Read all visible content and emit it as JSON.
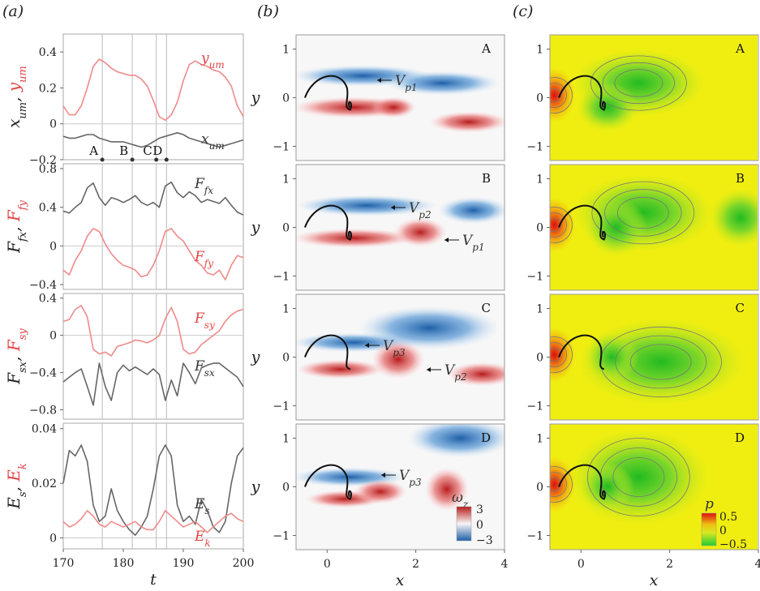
{
  "panels": {
    "a": "(a)",
    "b": "(b)",
    "c": "(c)"
  },
  "colors": {
    "red": "#f08a8a",
    "black": "#666666",
    "vort_pos": "#b71c1c",
    "vort_neg": "#1e5fa8",
    "pressure_low": "#33cc33",
    "pressure_high": "#e01010",
    "pressure_bg": "#f0ee10"
  },
  "chart_data": [
    {
      "type": "line",
      "panel": "a1",
      "xlim": [
        170,
        200
      ],
      "ylim": [
        -0.2,
        0.5
      ],
      "yticks": [
        "0.4",
        "0.2",
        "0",
        "−0.2"
      ],
      "ylabel_black": "x",
      "ylabel_black_sub": "um",
      "ylabel_sep": ",",
      "ylabel_red": "y",
      "ylabel_red_sub": "um",
      "series": [
        {
          "name": "y_um",
          "label": "y",
          "label_sub": "um",
          "color": "red",
          "x": [
            170,
            171,
            172,
            173,
            174,
            175,
            176,
            177,
            178,
            179,
            180,
            181,
            182,
            183,
            184,
            185,
            186,
            187,
            188,
            189,
            190,
            191,
            192,
            193,
            194,
            195,
            196,
            197,
            198,
            199,
            200
          ],
          "y": [
            0.1,
            0.05,
            0.05,
            0.1,
            0.2,
            0.32,
            0.36,
            0.34,
            0.31,
            0.29,
            0.28,
            0.27,
            0.27,
            0.25,
            0.21,
            0.13,
            0.04,
            0.02,
            0.05,
            0.12,
            0.24,
            0.33,
            0.35,
            0.33,
            0.32,
            0.3,
            0.29,
            0.26,
            0.21,
            0.1,
            0.04
          ]
        },
        {
          "name": "x_um",
          "label": "x",
          "label_sub": "um",
          "color": "black",
          "x": [
            170,
            171,
            172,
            173,
            174,
            175,
            176,
            177,
            178,
            179,
            180,
            181,
            182,
            183,
            184,
            185,
            186,
            187,
            188,
            189,
            190,
            191,
            192,
            193,
            194,
            195,
            196,
            197,
            198,
            199,
            200
          ],
          "y": [
            -0.07,
            -0.08,
            -0.08,
            -0.07,
            -0.06,
            -0.06,
            -0.08,
            -0.09,
            -0.1,
            -0.1,
            -0.1,
            -0.11,
            -0.12,
            -0.13,
            -0.12,
            -0.1,
            -0.08,
            -0.07,
            -0.06,
            -0.05,
            -0.06,
            -0.08,
            -0.09,
            -0.1,
            -0.11,
            -0.12,
            -0.13,
            -0.12,
            -0.11,
            -0.1,
            -0.09
          ]
        }
      ],
      "markers": [
        {
          "label": "A",
          "x": 176.5
        },
        {
          "label": "B",
          "x": 181.5
        },
        {
          "label": "C",
          "x": 185.5
        },
        {
          "label": "D",
          "x": 187.2
        }
      ]
    },
    {
      "type": "line",
      "panel": "a2",
      "xlim": [
        170,
        200
      ],
      "ylim": [
        -0.45,
        0.85
      ],
      "yticks": [
        "0.8",
        "0.4",
        "0",
        "−0.4"
      ],
      "ylabel_black": "F",
      "ylabel_black_sub": "fx",
      "ylabel_sep": ",",
      "ylabel_red": "F",
      "ylabel_red_sub": "fy",
      "series": [
        {
          "name": "F_fx",
          "label": "F",
          "label_sub": "fx",
          "color": "black",
          "x": [
            170,
            171,
            172,
            173,
            174,
            175,
            176,
            177,
            178,
            179,
            180,
            181,
            182,
            183,
            184,
            185,
            186,
            187,
            188,
            189,
            190,
            191,
            192,
            193,
            194,
            195,
            196,
            197,
            198,
            199,
            200
          ],
          "y": [
            0.36,
            0.34,
            0.4,
            0.45,
            0.6,
            0.65,
            0.5,
            0.42,
            0.5,
            0.48,
            0.45,
            0.48,
            0.52,
            0.45,
            0.42,
            0.45,
            0.4,
            0.62,
            0.66,
            0.55,
            0.5,
            0.56,
            0.52,
            0.45,
            0.48,
            0.46,
            0.44,
            0.5,
            0.42,
            0.35,
            0.32
          ]
        },
        {
          "name": "F_fy",
          "label": "F",
          "label_sub": "fy",
          "color": "red",
          "x": [
            170,
            171,
            172,
            173,
            174,
            175,
            176,
            177,
            178,
            179,
            180,
            181,
            182,
            183,
            184,
            185,
            186,
            187,
            188,
            189,
            190,
            191,
            192,
            193,
            194,
            195,
            196,
            197,
            198,
            199,
            200
          ],
          "y": [
            -0.25,
            -0.3,
            -0.15,
            -0.05,
            0.1,
            0.18,
            0.15,
            0.02,
            -0.08,
            -0.15,
            -0.2,
            -0.22,
            -0.25,
            -0.32,
            -0.3,
            -0.2,
            -0.05,
            0.15,
            0.18,
            0.1,
            0.05,
            -0.05,
            -0.15,
            -0.2,
            -0.28,
            -0.3,
            -0.25,
            -0.35,
            -0.2,
            -0.1,
            -0.12
          ]
        }
      ]
    },
    {
      "type": "line",
      "panel": "a3",
      "xlim": [
        170,
        200
      ],
      "ylim": [
        -0.9,
        0.45
      ],
      "yticks": [
        "0.4",
        "0",
        "−0.4",
        "−0.8"
      ],
      "ylabel_black": "F",
      "ylabel_black_sub": "sx",
      "ylabel_sep": ",",
      "ylabel_red": "F",
      "ylabel_red_sub": "sy",
      "series": [
        {
          "name": "F_sy",
          "label": "F",
          "label_sub": "sy",
          "color": "red",
          "x": [
            170,
            171,
            172,
            173,
            174,
            175,
            176,
            177,
            178,
            179,
            180,
            181,
            182,
            183,
            184,
            185,
            186,
            187,
            188,
            189,
            190,
            191,
            192,
            193,
            194,
            195,
            196,
            197,
            198,
            199,
            200
          ],
          "y": [
            0.15,
            0.17,
            0.28,
            0.32,
            0.2,
            -0.15,
            -0.2,
            -0.18,
            -0.22,
            -0.12,
            -0.1,
            -0.08,
            -0.05,
            -0.06,
            -0.08,
            -0.05,
            0.0,
            0.18,
            0.3,
            0.15,
            -0.15,
            -0.2,
            -0.18,
            -0.1,
            -0.05,
            0.0,
            0.05,
            0.15,
            0.22,
            0.26,
            0.28
          ]
        },
        {
          "name": "F_sx",
          "label": "F",
          "label_sub": "sx",
          "color": "black",
          "x": [
            170,
            171,
            172,
            173,
            174,
            175,
            176,
            177,
            178,
            179,
            180,
            181,
            182,
            183,
            184,
            185,
            186,
            187,
            188,
            189,
            190,
            191,
            192,
            193,
            194,
            195,
            196,
            197,
            198,
            199,
            200
          ],
          "y": [
            -0.5,
            -0.45,
            -0.4,
            -0.36,
            -0.55,
            -0.75,
            -0.3,
            -0.55,
            -0.7,
            -0.4,
            -0.32,
            -0.38,
            -0.34,
            -0.38,
            -0.42,
            -0.36,
            -0.42,
            -0.7,
            -0.48,
            -0.65,
            -0.3,
            -0.4,
            -0.52,
            -0.35,
            -0.32,
            -0.3,
            -0.3,
            -0.35,
            -0.4,
            -0.45,
            -0.55
          ]
        }
      ]
    },
    {
      "type": "line",
      "panel": "a4",
      "xlim": [
        170,
        200
      ],
      "ylim": [
        -0.004,
        0.042
      ],
      "yticks": [
        "0.04",
        "0.02",
        "0"
      ],
      "xticks": [
        "170",
        "180",
        "190",
        "200"
      ],
      "xlabel": "t",
      "ylabel_black": "E",
      "ylabel_black_sub": "s",
      "ylabel_sep": ",",
      "ylabel_red": "E",
      "ylabel_red_sub": "k",
      "series": [
        {
          "name": "E_s",
          "label": "E",
          "label_sub": "s",
          "color": "black",
          "x": [
            170,
            171,
            172,
            173,
            174,
            175,
            176,
            177,
            178,
            179,
            180,
            181,
            182,
            183,
            184,
            185,
            186,
            187,
            188,
            189,
            190,
            191,
            192,
            193,
            194,
            195,
            196,
            197,
            198,
            199,
            200
          ],
          "y": [
            0.02,
            0.032,
            0.03,
            0.034,
            0.028,
            0.012,
            0.006,
            0.008,
            0.018,
            0.01,
            0.006,
            0.003,
            0.001,
            0.004,
            0.008,
            0.018,
            0.03,
            0.034,
            0.03,
            0.012,
            0.006,
            0.008,
            0.005,
            0.014,
            0.01,
            0.004,
            0.002,
            0.006,
            0.02,
            0.03,
            0.033
          ]
        },
        {
          "name": "E_k",
          "label": "E",
          "label_sub": "k",
          "color": "red",
          "x": [
            170,
            171,
            172,
            173,
            174,
            175,
            176,
            177,
            178,
            179,
            180,
            181,
            182,
            183,
            184,
            185,
            186,
            187,
            188,
            189,
            190,
            191,
            192,
            193,
            194,
            195,
            196,
            197,
            198,
            199,
            200
          ],
          "y": [
            0.006,
            0.004,
            0.005,
            0.007,
            0.01,
            0.008,
            0.005,
            0.004,
            0.006,
            0.005,
            0.004,
            0.005,
            0.006,
            0.004,
            0.003,
            0.003,
            0.006,
            0.01,
            0.008,
            0.006,
            0.004,
            0.005,
            0.006,
            0.004,
            0.002,
            0.004,
            0.006,
            0.008,
            0.009,
            0.007,
            0.006
          ]
        }
      ]
    }
  ],
  "fields": {
    "xticks": [
      "0",
      "2",
      "4"
    ],
    "yticks": [
      "1",
      "0",
      "−1"
    ],
    "xlabel": "x",
    "ylabel": "y",
    "snapshots": [
      "A",
      "B",
      "C",
      "D"
    ],
    "vortex_labels": {
      "A": [
        {
          "t": "V",
          "s": "p1"
        }
      ],
      "B": [
        {
          "t": "V",
          "s": "p2"
        },
        {
          "t": "V",
          "s": "p1"
        }
      ],
      "C": [
        {
          "t": "V",
          "s": "p3"
        },
        {
          "t": "V",
          "s": "p2"
        }
      ],
      "D": [
        {
          "t": "V",
          "s": "p3"
        }
      ]
    },
    "vorticity_colorbar": {
      "label": "ω",
      "label_sub": "z",
      "ticks": [
        "3",
        "0",
        "−3"
      ]
    },
    "pressure_colorbar": {
      "label": "p",
      "ticks": [
        "0.5",
        "0",
        "−0.5"
      ]
    }
  }
}
